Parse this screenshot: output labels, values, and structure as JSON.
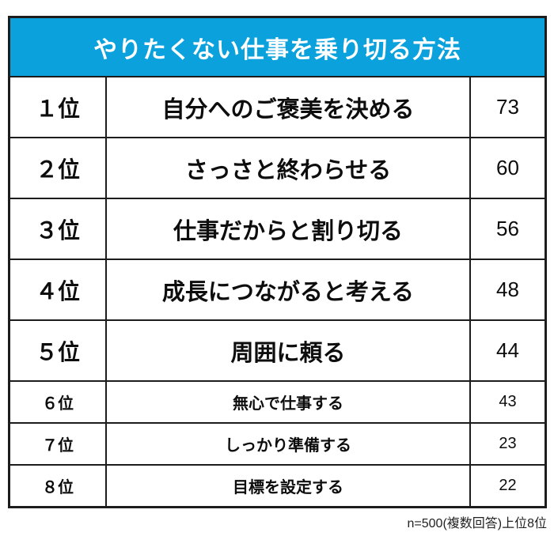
{
  "title": "やりたくない仕事を乗り切る方法",
  "footnote": "n=500(複数回答)上位8位",
  "colors": {
    "header_bg": "#0ba1dc",
    "header_text": "#ffffff",
    "border": "#1c1c1c",
    "text": "#0d0d0d"
  },
  "chart_data": {
    "type": "table",
    "title": "やりたくない仕事を乗り切る方法",
    "note": "n=500(複数回答)上位8位",
    "rows": [
      {
        "rank": "１位",
        "label": "自分へのご褒美を決める",
        "value": 73
      },
      {
        "rank": "２位",
        "label": "さっさと終わらせる",
        "value": 60
      },
      {
        "rank": "３位",
        "label": "仕事だからと割り切る",
        "value": 56
      },
      {
        "rank": "４位",
        "label": "成長につながると考える",
        "value": 48
      },
      {
        "rank": "５位",
        "label": "周囲に頼る",
        "value": 44
      },
      {
        "rank": "６位",
        "label": "無心で仕事する",
        "value": 43
      },
      {
        "rank": "７位",
        "label": "しっかり準備する",
        "value": 23
      },
      {
        "rank": "８位",
        "label": "目標を設定する",
        "value": 22
      }
    ]
  }
}
